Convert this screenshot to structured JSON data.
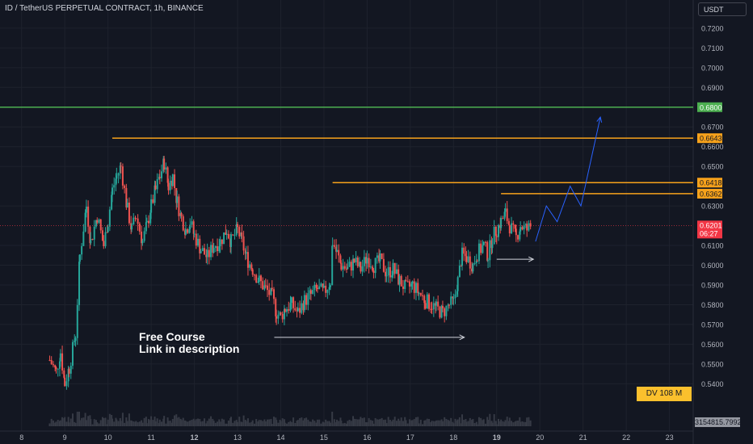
{
  "header": {
    "title": "ID / TetherUS PERPETUAL CONTRACT, 1h, BINANCE",
    "currency": "USDT"
  },
  "annotations": {
    "note_line1": "Free Course",
    "note_line2": "Link in description",
    "dv_badge": "DV 108 M",
    "volume_value": "3154815.7992",
    "countdown": "06:27"
  },
  "colors": {
    "background": "#131722",
    "grid": "#1e222d",
    "bull": "#26a69a",
    "bear": "#ef5350",
    "resistance": "#f7a21b",
    "target": "#4caf50",
    "projection": "#2962ff",
    "current": "#f23645",
    "text": "#b2b5be"
  },
  "chart_data": {
    "type": "candlestick",
    "title": "ID / TetherUS PERPETUAL CONTRACT, 1h, BINANCE",
    "xlabel": "",
    "ylabel": "",
    "ylim": [
      0.534,
      0.722
    ],
    "xlim": [
      7.5,
      23.55
    ],
    "x_ticks": [
      {
        "label": "8",
        "value": 8,
        "bold": false
      },
      {
        "label": "9",
        "value": 9,
        "bold": false
      },
      {
        "label": "10",
        "value": 10,
        "bold": false
      },
      {
        "label": "11",
        "value": 11,
        "bold": false
      },
      {
        "label": "12",
        "value": 12,
        "bold": true
      },
      {
        "label": "13",
        "value": 13,
        "bold": false
      },
      {
        "label": "14",
        "value": 14,
        "bold": false
      },
      {
        "label": "15",
        "value": 15,
        "bold": false
      },
      {
        "label": "16",
        "value": 16,
        "bold": false
      },
      {
        "label": "17",
        "value": 17,
        "bold": false
      },
      {
        "label": "18",
        "value": 18,
        "bold": false
      },
      {
        "label": "19",
        "value": 19,
        "bold": true
      },
      {
        "label": "20",
        "value": 20,
        "bold": false
      },
      {
        "label": "21",
        "value": 21,
        "bold": false
      },
      {
        "label": "22",
        "value": 22,
        "bold": false
      },
      {
        "label": "23",
        "value": 23,
        "bold": false
      }
    ],
    "y_ticks": [
      {
        "label": "0.7200",
        "value": 0.72
      },
      {
        "label": "0.7100",
        "value": 0.71
      },
      {
        "label": "0.7000",
        "value": 0.7
      },
      {
        "label": "0.6900",
        "value": 0.69
      },
      {
        "label": "0.6700",
        "value": 0.67
      },
      {
        "label": "0.6600",
        "value": 0.66
      },
      {
        "label": "0.6500",
        "value": 0.65
      },
      {
        "label": "0.6300",
        "value": 0.63
      },
      {
        "label": "0.6100",
        "value": 0.61
      },
      {
        "label": "0.6000",
        "value": 0.6
      },
      {
        "label": "0.5900",
        "value": 0.59
      },
      {
        "label": "0.5800",
        "value": 0.58
      },
      {
        "label": "0.5700",
        "value": 0.57
      },
      {
        "label": "0.5600",
        "value": 0.56
      },
      {
        "label": "0.5500",
        "value": 0.55
      },
      {
        "label": "0.5400",
        "value": 0.54
      }
    ],
    "grid": true,
    "price_path": [
      [
        8.65,
        0.552
      ],
      [
        8.8,
        0.546
      ],
      [
        8.9,
        0.556
      ],
      [
        9.0,
        0.54
      ],
      [
        9.1,
        0.548
      ],
      [
        9.25,
        0.565
      ],
      [
        9.35,
        0.605
      ],
      [
        9.5,
        0.63
      ],
      [
        9.6,
        0.612
      ],
      [
        9.75,
        0.625
      ],
      [
        9.9,
        0.61
      ],
      [
        10.0,
        0.622
      ],
      [
        10.1,
        0.638
      ],
      [
        10.2,
        0.645
      ],
      [
        10.3,
        0.65
      ],
      [
        10.45,
        0.628
      ],
      [
        10.55,
        0.618
      ],
      [
        10.65,
        0.625
      ],
      [
        10.8,
        0.612
      ],
      [
        10.9,
        0.62
      ],
      [
        11.0,
        0.63
      ],
      [
        11.1,
        0.638
      ],
      [
        11.2,
        0.645
      ],
      [
        11.3,
        0.652
      ],
      [
        11.4,
        0.64
      ],
      [
        11.5,
        0.645
      ],
      [
        11.6,
        0.632
      ],
      [
        11.7,
        0.624
      ],
      [
        11.8,
        0.618
      ],
      [
        11.9,
        0.622
      ],
      [
        12.0,
        0.615
      ],
      [
        12.15,
        0.608
      ],
      [
        12.3,
        0.604
      ],
      [
        12.45,
        0.61
      ],
      [
        12.6,
        0.612
      ],
      [
        12.75,
        0.618
      ],
      [
        12.85,
        0.612
      ],
      [
        13.0,
        0.618
      ],
      [
        13.1,
        0.612
      ],
      [
        13.2,
        0.604
      ],
      [
        13.35,
        0.598
      ],
      [
        13.5,
        0.592
      ],
      [
        13.65,
        0.588
      ],
      [
        13.8,
        0.584
      ],
      [
        13.9,
        0.576
      ],
      [
        14.0,
        0.574
      ],
      [
        14.1,
        0.578
      ],
      [
        14.25,
        0.58
      ],
      [
        14.4,
        0.576
      ],
      [
        14.55,
        0.582
      ],
      [
        14.7,
        0.585
      ],
      [
        14.85,
        0.588
      ],
      [
        15.0,
        0.586
      ],
      [
        15.15,
        0.592
      ],
      [
        15.2,
        0.612
      ],
      [
        15.3,
        0.606
      ],
      [
        15.4,
        0.6
      ],
      [
        15.55,
        0.598
      ],
      [
        15.7,
        0.602
      ],
      [
        15.85,
        0.598
      ],
      [
        16.0,
        0.604
      ],
      [
        16.15,
        0.6
      ],
      [
        16.3,
        0.602
      ],
      [
        16.45,
        0.596
      ],
      [
        16.6,
        0.598
      ],
      [
        16.75,
        0.592
      ],
      [
        16.9,
        0.588
      ],
      [
        17.05,
        0.59
      ],
      [
        17.2,
        0.586
      ],
      [
        17.35,
        0.582
      ],
      [
        17.5,
        0.58
      ],
      [
        17.6,
        0.578
      ],
      [
        17.75,
        0.576
      ],
      [
        17.9,
        0.58
      ],
      [
        18.0,
        0.581
      ],
      [
        18.1,
        0.592
      ],
      [
        18.2,
        0.605
      ],
      [
        18.3,
        0.604
      ],
      [
        18.45,
        0.6
      ],
      [
        18.55,
        0.606
      ],
      [
        18.7,
        0.61
      ],
      [
        18.8,
        0.605
      ],
      [
        18.9,
        0.614
      ],
      [
        19.0,
        0.618
      ],
      [
        19.1,
        0.622
      ],
      [
        19.2,
        0.626
      ],
      [
        19.3,
        0.62
      ],
      [
        19.45,
        0.614
      ],
      [
        19.55,
        0.62
      ],
      [
        19.7,
        0.618
      ],
      [
        19.8,
        0.62
      ]
    ],
    "annotations": [
      {
        "name": "target",
        "value": 0.68,
        "label": "0.6800",
        "color": "#4caf50",
        "x_start": 7.5
      },
      {
        "name": "resistance-1",
        "value": 0.6643,
        "label": "0.6643",
        "color": "#f7a21b",
        "x_start": 10.1
      },
      {
        "name": "resistance-2",
        "value": 0.6418,
        "label": "0.6418",
        "color": "#f7a21b",
        "x_start": 15.2
      },
      {
        "name": "resistance-3",
        "value": 0.6362,
        "label": "0.6362",
        "color": "#f7a21b",
        "x_start": 19.1
      }
    ],
    "current_price": {
      "value": 0.6201,
      "label": "0.6201",
      "countdown": "06:27"
    },
    "support_arrows": [
      {
        "x_from": 13.85,
        "x_to": 18.25,
        "y": 0.5635
      },
      {
        "x_from": 19.0,
        "x_to": 19.85,
        "y": 0.603
      }
    ],
    "projection": [
      [
        19.9,
        0.612
      ],
      [
        20.15,
        0.63
      ],
      [
        20.4,
        0.622
      ],
      [
        20.7,
        0.64
      ],
      [
        20.95,
        0.63
      ],
      [
        21.4,
        0.675
      ]
    ],
    "volume_value": "3154815.7992"
  }
}
